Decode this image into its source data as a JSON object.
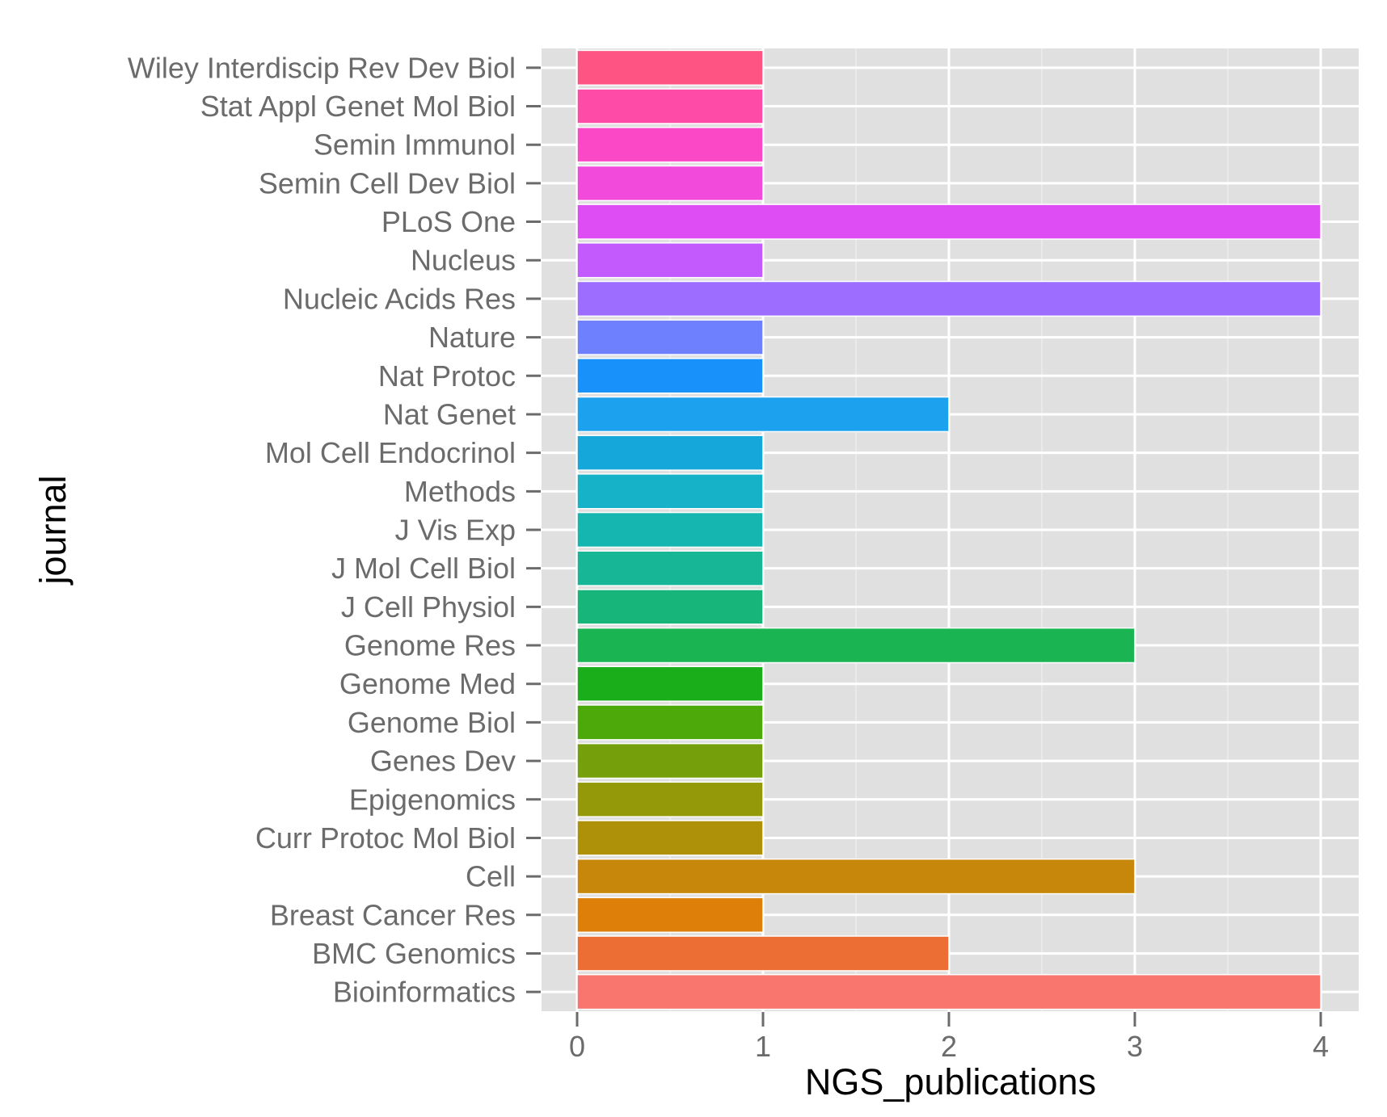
{
  "chart_data": {
    "type": "bar",
    "orientation": "horizontal",
    "xlabel": "NGS_publications",
    "ylabel": "journal",
    "xlim": [
      0,
      4
    ],
    "x_ticks": [
      "0",
      "1",
      "2",
      "3",
      "4"
    ],
    "grid": true,
    "legend": "none",
    "panel_background": "#e0e0e0",
    "categories": [
      "Bioinformatics",
      "BMC Genomics",
      "Breast Cancer Res",
      "Cell",
      "Curr Protoc Mol Biol",
      "Epigenomics",
      "Genes Dev",
      "Genome Biol",
      "Genome Med",
      "Genome Res",
      "J Cell Physiol",
      "J Mol Cell Biol",
      "J Vis Exp",
      "Methods",
      "Mol Cell Endocrinol",
      "Nat Genet",
      "Nat Protoc",
      "Nature",
      "Nucleic Acids Res",
      "Nucleus",
      "PLoS One",
      "Semin Cell Dev Biol",
      "Semin Immunol",
      "Stat Appl Genet Mol Biol",
      "Wiley Interdiscip Rev Dev Biol"
    ],
    "values": [
      4,
      2,
      1,
      3,
      1,
      1,
      1,
      1,
      1,
      3,
      1,
      1,
      1,
      1,
      1,
      2,
      1,
      1,
      4,
      1,
      4,
      1,
      1,
      1,
      1
    ],
    "colors": [
      "#F8766D",
      "#EC6E34",
      "#DE7F0A",
      "#C7870A",
      "#AE9108",
      "#94990A",
      "#769F0C",
      "#4DA80A",
      "#1AAE1A",
      "#1AB453",
      "#18B57A",
      "#16B696",
      "#16B6B0",
      "#15B2C8",
      "#16A7DA",
      "#1CA1EE",
      "#1991FA",
      "#6E80FE",
      "#9C6DFE",
      "#C35AFE",
      "#DE4DF3",
      "#F24BDC",
      "#FB48C7",
      "#FF4BA8",
      "#FE5484"
    ]
  }
}
